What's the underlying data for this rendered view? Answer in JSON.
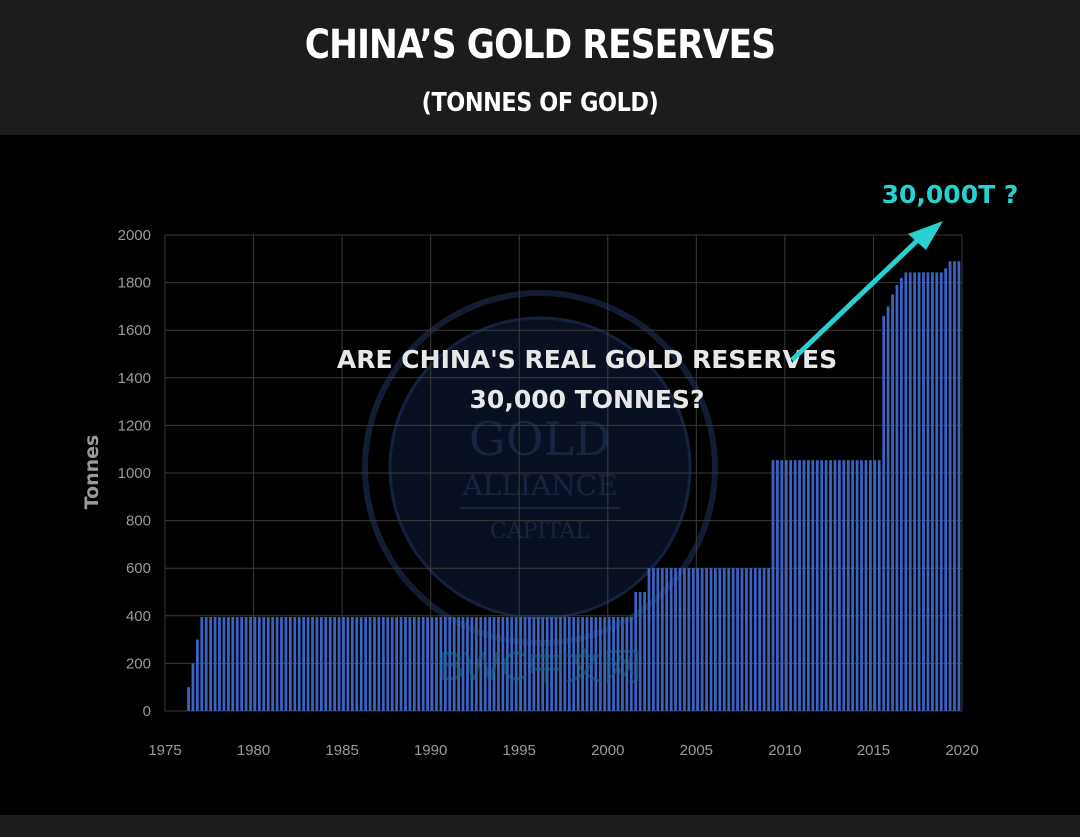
{
  "header": {
    "title": "CHINA’S GOLD RESERVES",
    "subtitle": "(TONNES OF GOLD)"
  },
  "colors": {
    "header_bg": "#1c1c1c",
    "plot_bg": "#000000",
    "bar": "#3a63c4",
    "accent": "#29d0d0",
    "grid": "#3a3a3a"
  },
  "annotations": {
    "question_line1": "ARE CHINA'S REAL GOLD RESERVES",
    "question_line2": "30,000 TONNES?",
    "target_label": "30,000T ?"
  },
  "watermark": {
    "logo_line1": "GOLD",
    "logo_line2": "ALLIANCE",
    "logo_line3": "CAPITAL",
    "bwc": "BWC中文网"
  },
  "chart_data": {
    "type": "bar",
    "title": "CHINA’S GOLD RESERVES",
    "subtitle": "(TONNES OF GOLD)",
    "xlabel": "",
    "ylabel": "Tonnes",
    "xlim": [
      1975,
      2020
    ],
    "ylim": [
      0,
      2000
    ],
    "grid": true,
    "xticks": [
      1975,
      1980,
      1985,
      1990,
      1995,
      2000,
      2005,
      2010,
      2015,
      2020
    ],
    "yticks": [
      0,
      200,
      400,
      600,
      800,
      1000,
      1200,
      1400,
      1600,
      1800,
      2000
    ],
    "xtick_labels": [
      "1975",
      "1980",
      "1985",
      "1990",
      "1995",
      "2000",
      "2005",
      "2010",
      "2015",
      "2020"
    ],
    "ytick_labels": [
      "0",
      "200",
      "400",
      "600",
      "800",
      "1000",
      "1200",
      "1400",
      "1600",
      "1800",
      "2000"
    ],
    "bar_step_years": 0.25,
    "levels": [
      {
        "from": 1976.25,
        "to": 1976.5,
        "value": 100
      },
      {
        "from": 1976.5,
        "to": 1976.75,
        "value": 200
      },
      {
        "from": 1976.75,
        "to": 1977.0,
        "value": 300
      },
      {
        "from": 1977.0,
        "to": 2001.5,
        "value": 395
      },
      {
        "from": 2001.5,
        "to": 2002.25,
        "value": 500
      },
      {
        "from": 2002.25,
        "to": 2009.25,
        "value": 600
      },
      {
        "from": 2009.25,
        "to": 2015.5,
        "value": 1054
      },
      {
        "from": 2015.5,
        "to": 2015.75,
        "value": 1660
      },
      {
        "from": 2015.75,
        "to": 2016.0,
        "value": 1700
      },
      {
        "from": 2016.0,
        "to": 2016.25,
        "value": 1750
      },
      {
        "from": 2016.25,
        "to": 2016.5,
        "value": 1790
      },
      {
        "from": 2016.5,
        "to": 2016.75,
        "value": 1820
      },
      {
        "from": 2016.75,
        "to": 2019.0,
        "value": 1843
      },
      {
        "from": 2019.0,
        "to": 2019.25,
        "value": 1860
      },
      {
        "from": 2019.25,
        "to": 2020.0,
        "value": 1890
      }
    ]
  }
}
